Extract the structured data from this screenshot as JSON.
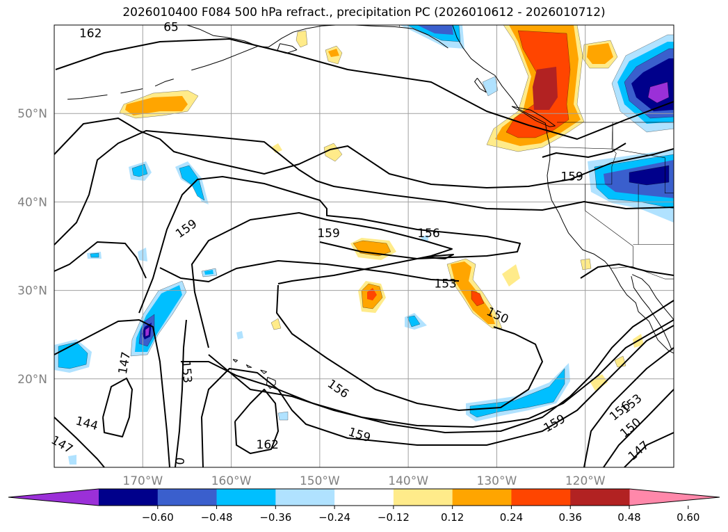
{
  "title": "2026010400 F084 500 hPa refract., precipitation PC (2026010612 - 2026010712)",
  "colors": {
    "land": "#000000",
    "grid": "#a0a0a0",
    "axis_label": "#808080",
    "contour": "#000000"
  },
  "map": {
    "projection": "cylindrical",
    "lon_range": [
      -180,
      -110
    ],
    "lat_range": [
      10,
      60
    ],
    "lat_labels": [
      "50°N",
      "40°N",
      "30°N",
      "20°N"
    ],
    "lon_labels": [
      "170°W",
      "160°W",
      "150°W",
      "140°W",
      "130°W",
      "120°W"
    ]
  },
  "contour_labels": [
    {
      "text": "162",
      "lon": -175.9,
      "lat": 59.1
    },
    {
      "text": "65",
      "lon": -166.8,
      "lat": 59.8
    },
    {
      "text": "159",
      "lon": -165.1,
      "lat": 37.0
    },
    {
      "text": "159",
      "lon": -149.0,
      "lat": 36.5
    },
    {
      "text": "156",
      "lon": -137.7,
      "lat": 36.5
    },
    {
      "text": "153",
      "lon": -135.8,
      "lat": 30.8
    },
    {
      "text": "150",
      "lon": -129.9,
      "lat": 27.2
    },
    {
      "text": "159",
      "lon": -121.5,
      "lat": 42.9
    },
    {
      "text": "147",
      "lon": -172.1,
      "lat": 21.8
    },
    {
      "text": "153",
      "lon": -165.0,
      "lat": 20.8
    },
    {
      "text": "144",
      "lon": -176.3,
      "lat": 15.0
    },
    {
      "text": "147",
      "lon": -179.1,
      "lat": 12.6
    },
    {
      "text": "0",
      "lon": -165.8,
      "lat": 10.7
    },
    {
      "text": "162",
      "lon": -155.9,
      "lat": 12.6
    },
    {
      "text": "156",
      "lon": -147.9,
      "lat": 18.9
    },
    {
      "text": "159",
      "lon": -145.5,
      "lat": 13.7
    },
    {
      "text": "159",
      "lon": -123.5,
      "lat": 15.0
    },
    {
      "text": "156",
      "lon": -116.1,
      "lat": 16.4
    },
    {
      "text": "153",
      "lon": -114.8,
      "lat": 17.2
    },
    {
      "text": "150",
      "lon": -114.9,
      "lat": 14.5
    },
    {
      "text": "147",
      "lon": -114.0,
      "lat": 11.9
    }
  ],
  "colorbar": {
    "ticks": [
      "-0.60",
      "-0.48",
      "-0.36",
      "-0.24",
      "-0.12",
      "0.12",
      "0.24",
      "0.36",
      "0.48",
      "0.60"
    ],
    "tick_values": [
      -0.6,
      -0.48,
      -0.36,
      -0.24,
      -0.12,
      0.12,
      0.24,
      0.36,
      0.48,
      0.6
    ],
    "colors": [
      "#9b30d8",
      "#00008b",
      "#3a5fcd",
      "#00bfff",
      "#b0e2ff",
      "#ffffff",
      "#ffeb8a",
      "#ffa500",
      "#ff4500",
      "#b22222",
      "#ff88aa"
    ]
  }
}
